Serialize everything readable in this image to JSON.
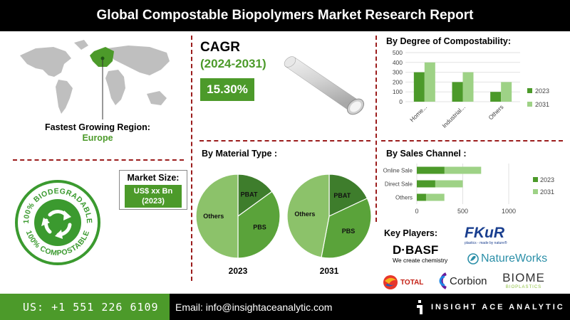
{
  "header": {
    "title": "Global Compostable Biopolymers Market Research Report"
  },
  "region": {
    "label": "Fastest Growing Region:",
    "value": "Europe"
  },
  "market_size": {
    "label": "Market Size:",
    "value_line1": "US$ xx Bn",
    "value_line2": "(2023)"
  },
  "seal": {
    "text": "100% BIODEGRADABLE · 100% COMPOSTABLE"
  },
  "cagr": {
    "title": "CAGR",
    "period": "(2024-2031)",
    "value": "15.30%"
  },
  "colors": {
    "accent": "#4c9a2a",
    "series_2023": "#4c9a2a",
    "series_2031": "#9ed286",
    "pie_others": "#8cc26a",
    "pie_pbs": "#5aa33a",
    "pie_pbat": "#3e7d2c",
    "divider": "#9b1c1c"
  },
  "footer": {
    "phone": "US: +1 551 226 6109",
    "email": "Email: info@insightaceanalytic.com",
    "brand": "INSIGHT ACE ANALYTIC"
  },
  "key_players": {
    "title": "Key Players:",
    "logos": {
      "fkur": "FKuR",
      "fkur_tag": "plastics - made by nature®",
      "basf": "BASF",
      "basf_prefix": "D·",
      "basf_tag": "We create chemistry",
      "natureworks": "NatureWorks",
      "total": "TOTAL",
      "corbion": "Corbion",
      "biome": "BIOME",
      "biome_tag": "BIOPLASTICS"
    }
  },
  "chart_data": [
    {
      "type": "bar",
      "title": "By Degree of Compostability:",
      "categories": [
        "Home...",
        "Industrial...",
        "Others"
      ],
      "series": [
        {
          "name": "2023",
          "values": [
            300,
            200,
            100
          ]
        },
        {
          "name": "2031",
          "values": [
            400,
            300,
            200
          ]
        }
      ],
      "ylim": [
        0,
        500
      ],
      "yticks": [
        0,
        100,
        200,
        300,
        400,
        500
      ],
      "legend": "right"
    },
    {
      "type": "pie",
      "title": "By Material Type :",
      "charts": [
        {
          "label": "2023",
          "slices": [
            {
              "name": "PBAT",
              "value": 15
            },
            {
              "name": "PBS",
              "value": 35
            },
            {
              "name": "Others",
              "value": 50
            }
          ]
        },
        {
          "label": "2031",
          "slices": [
            {
              "name": "PBAT",
              "value": 18
            },
            {
              "name": "PBS",
              "value": 35
            },
            {
              "name": "Others",
              "value": 47
            }
          ]
        }
      ]
    },
    {
      "type": "bar",
      "orientation": "horizontal",
      "title": "By Sales Channel :",
      "categories": [
        "Online Sale",
        "Direct Sale",
        "Others"
      ],
      "series": [
        {
          "name": "2023",
          "values": [
            300,
            200,
            100
          ]
        },
        {
          "name": "2031",
          "values": [
            700,
            500,
            300
          ]
        }
      ],
      "xlim": [
        0,
        1000
      ],
      "xticks": [
        0,
        500,
        1000
      ],
      "legend": "right"
    }
  ]
}
